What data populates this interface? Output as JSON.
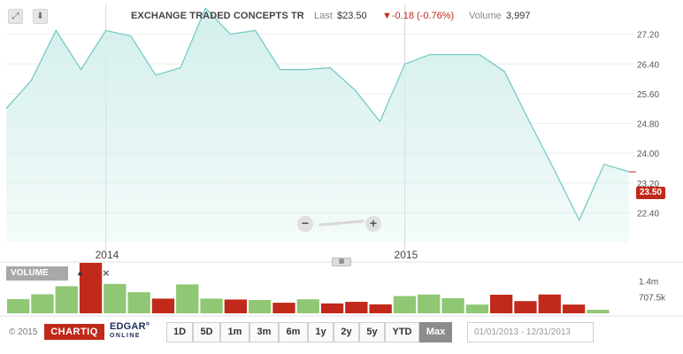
{
  "header": {
    "company": "EXCHANGE TRADED CONCEPTS TR",
    "last_label": "Last",
    "last_value": "$23.50",
    "change": "▼-0.18 (-0.76%)",
    "volume_label": "Volume",
    "volume_value": "3,997",
    "expand_icon": "expand-icon",
    "download_icon": "down-arrow-icon"
  },
  "colors": {
    "area_fill": "#d3efec",
    "line": "#6cc9c1",
    "down": "#c1291a",
    "up": "#8fc775",
    "grid": "#eeeeee"
  },
  "price_tag": "23.50",
  "zoom": {
    "out": "−",
    "in": "+"
  },
  "volume_panel": {
    "label": "VOLUME",
    "close": "×",
    "up_icon": "arrow-up-icon"
  },
  "chart_data": {
    "type": "area",
    "x_labels": [
      "2014",
      "2015"
    ],
    "x_label_index": [
      4,
      16
    ],
    "y_ticks": [
      "27.20",
      "26.40",
      "25.60",
      "24.80",
      "24.00",
      "23.20",
      "22.40"
    ],
    "y_tick_values": [
      27.2,
      26.4,
      25.6,
      24.8,
      24.0,
      23.2,
      22.4
    ],
    "ylim": [
      21.6,
      28.0
    ],
    "last_price": 23.5,
    "values": [
      25.2,
      25.95,
      27.3,
      26.25,
      27.3,
      27.15,
      26.1,
      26.3,
      27.9,
      27.2,
      27.3,
      26.25,
      26.25,
      26.3,
      25.7,
      24.85,
      26.4,
      26.65,
      26.65,
      26.65,
      26.2,
      24.85,
      23.55,
      22.2,
      23.7,
      23.5
    ],
    "volume": {
      "y_ticks": [
        "1.4m",
        "707.5k"
      ],
      "y_tick_values": [
        1400000,
        707500
      ],
      "ylim": [
        0,
        2200000
      ],
      "bars": [
        {
          "v": 620000,
          "dir": "up"
        },
        {
          "v": 830000,
          "dir": "up"
        },
        {
          "v": 1180000,
          "dir": "up"
        },
        {
          "v": 2200000,
          "dir": "down"
        },
        {
          "v": 1280000,
          "dir": "up"
        },
        {
          "v": 920000,
          "dir": "up"
        },
        {
          "v": 640000,
          "dir": "down"
        },
        {
          "v": 1260000,
          "dir": "up"
        },
        {
          "v": 640000,
          "dir": "up"
        },
        {
          "v": 600000,
          "dir": "down"
        },
        {
          "v": 580000,
          "dir": "up"
        },
        {
          "v": 460000,
          "dir": "down"
        },
        {
          "v": 610000,
          "dir": "up"
        },
        {
          "v": 430000,
          "dir": "down"
        },
        {
          "v": 500000,
          "dir": "down"
        },
        {
          "v": 390000,
          "dir": "down"
        },
        {
          "v": 750000,
          "dir": "up"
        },
        {
          "v": 820000,
          "dir": "up"
        },
        {
          "v": 660000,
          "dir": "up"
        },
        {
          "v": 380000,
          "dir": "up"
        },
        {
          "v": 810000,
          "dir": "down"
        },
        {
          "v": 530000,
          "dir": "down"
        },
        {
          "v": 820000,
          "dir": "down"
        },
        {
          "v": 380000,
          "dir": "down"
        },
        {
          "v": 150000,
          "dir": "up"
        }
      ]
    }
  },
  "footer": {
    "copyright": "© 2015",
    "chartiq": "CHARTIQ",
    "edgar": "EDGAR°",
    "edgar_online": "ONLINE",
    "ranges": [
      "1D",
      "5D",
      "1m",
      "3m",
      "6m",
      "1y",
      "2y",
      "5y",
      "YTD",
      "Max"
    ],
    "active_range": "Max",
    "date_range": "01/01/2013 - 12/31/2013"
  }
}
